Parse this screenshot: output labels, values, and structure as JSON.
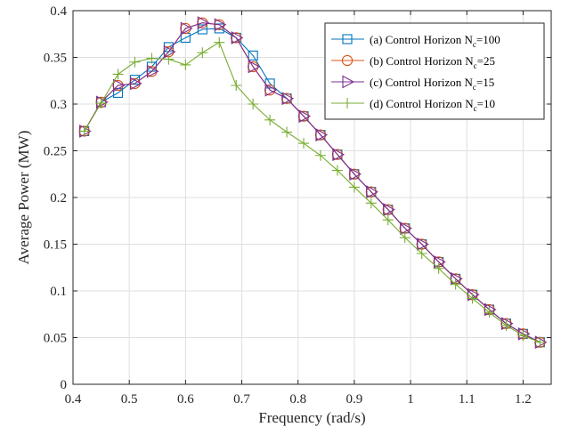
{
  "chart_data": {
    "type": "line",
    "title": "",
    "xlabel": "Frequency (rad/s)",
    "ylabel": "Average Power (MW)",
    "xlim": [
      0.4,
      1.25
    ],
    "ylim": [
      0,
      0.4
    ],
    "xticks": [
      "0.4",
      "0.5",
      "0.6",
      "0.7",
      "0.8",
      "0.9",
      "1",
      "1.1",
      "1.2"
    ],
    "xtick_values": [
      0.4,
      0.5,
      0.6,
      0.7,
      0.8,
      0.9,
      1.0,
      1.1,
      1.2
    ],
    "yticks": [
      "0",
      "0.05",
      "0.1",
      "0.15",
      "0.2",
      "0.25",
      "0.3",
      "0.35",
      "0.4"
    ],
    "ytick_values": [
      0,
      0.05,
      0.1,
      0.15,
      0.2,
      0.25,
      0.3,
      0.35,
      0.4
    ],
    "grid": true,
    "legend_position": "top-right",
    "x": [
      0.42,
      0.45,
      0.48,
      0.51,
      0.54,
      0.57,
      0.6,
      0.63,
      0.66,
      0.69,
      0.72,
      0.75,
      0.78,
      0.81,
      0.84,
      0.87,
      0.9,
      0.93,
      0.96,
      0.99,
      1.02,
      1.05,
      1.08,
      1.11,
      1.14,
      1.17,
      1.2,
      1.23
    ],
    "series": [
      {
        "name": "(a) Control Horizon N",
        "name_sub": "c",
        "name_suffix": "=100",
        "color": "#0072BD",
        "marker": "square",
        "values": [
          0.271,
          0.302,
          0.312,
          0.326,
          0.34,
          0.361,
          0.371,
          0.38,
          0.381,
          0.371,
          0.352,
          0.322,
          0.306,
          0.287,
          0.267,
          0.246,
          0.225,
          0.206,
          0.187,
          0.167,
          0.15,
          0.131,
          0.113,
          0.096,
          0.08,
          0.065,
          0.054,
          0.045
        ]
      },
      {
        "name": "(b) Control Horizon N",
        "name_sub": "c",
        "name_suffix": "=25",
        "color": "#D95319",
        "marker": "circle",
        "values": [
          0.271,
          0.302,
          0.32,
          0.322,
          0.335,
          0.356,
          0.381,
          0.387,
          0.385,
          0.371,
          0.34,
          0.315,
          0.306,
          0.287,
          0.267,
          0.246,
          0.225,
          0.206,
          0.187,
          0.167,
          0.15,
          0.131,
          0.113,
          0.096,
          0.08,
          0.065,
          0.054,
          0.045
        ]
      },
      {
        "name": "(c) Control Horizon N",
        "name_sub": "c",
        "name_suffix": "=15",
        "color": "#7E2F8E",
        "marker": "triangle-right",
        "values": [
          0.271,
          0.302,
          0.32,
          0.322,
          0.335,
          0.356,
          0.381,
          0.387,
          0.385,
          0.371,
          0.34,
          0.315,
          0.306,
          0.287,
          0.267,
          0.246,
          0.225,
          0.206,
          0.187,
          0.167,
          0.15,
          0.131,
          0.113,
          0.096,
          0.08,
          0.065,
          0.054,
          0.045
        ]
      },
      {
        "name": "(d) Control Horizon N",
        "name_sub": "c",
        "name_suffix": "=10",
        "color": "#77AC30",
        "marker": "plus",
        "values": [
          0.271,
          0.301,
          0.332,
          0.345,
          0.349,
          0.348,
          0.342,
          0.355,
          0.366,
          0.32,
          0.3,
          0.283,
          0.27,
          0.258,
          0.245,
          0.229,
          0.211,
          0.194,
          0.176,
          0.157,
          0.14,
          0.124,
          0.107,
          0.092,
          0.077,
          0.063,
          0.052,
          0.045
        ]
      }
    ]
  }
}
